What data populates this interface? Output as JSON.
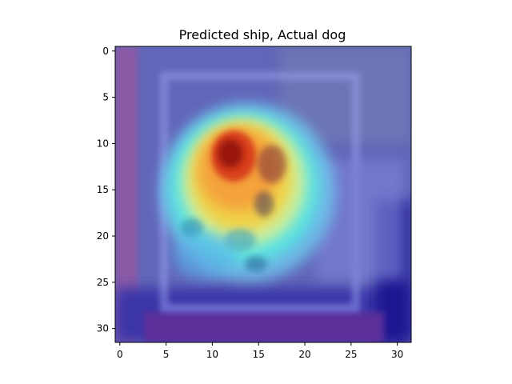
{
  "figure": {
    "title": "Predicted ship, Actual dog"
  },
  "image": {
    "description_kind": "grad-cam heatmap overlay",
    "colormap": "jet",
    "grid_size": 32
  },
  "axes": {
    "x_ticks": [
      {
        "value": 0,
        "label": "0"
      },
      {
        "value": 5,
        "label": "5"
      },
      {
        "value": 10,
        "label": "10"
      },
      {
        "value": 15,
        "label": "15"
      },
      {
        "value": 20,
        "label": "20"
      },
      {
        "value": 25,
        "label": "25"
      },
      {
        "value": 30,
        "label": "30"
      }
    ],
    "y_ticks": [
      {
        "value": 0,
        "label": "0"
      },
      {
        "value": 5,
        "label": "5"
      },
      {
        "value": 10,
        "label": "10"
      },
      {
        "value": 15,
        "label": "15"
      },
      {
        "value": 20,
        "label": "20"
      },
      {
        "value": 25,
        "label": "25"
      },
      {
        "value": 30,
        "label": "30"
      }
    ]
  },
  "colors": {
    "background": "#5a5fb8",
    "hot": "#b81c0c",
    "warm": "#f0c040",
    "cool": "#4fe0e0",
    "border_dark": "#16169a"
  }
}
